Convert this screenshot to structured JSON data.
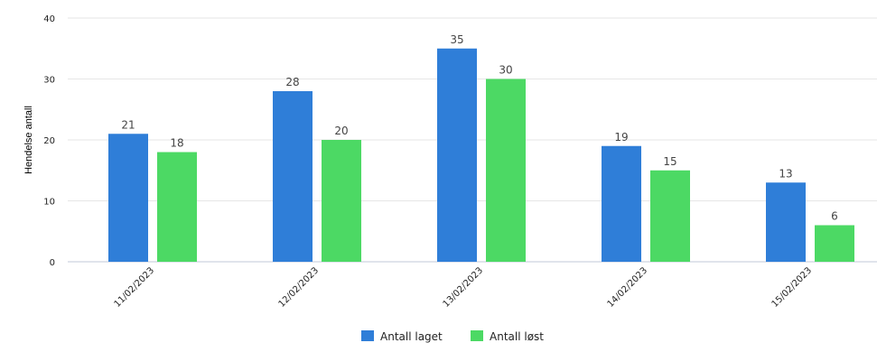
{
  "chart_data": {
    "type": "bar",
    "title": "",
    "xlabel": "",
    "ylabel": "Hendelse antall",
    "ylim": [
      0,
      40
    ],
    "yticks": [
      0,
      10,
      20,
      30,
      40
    ],
    "grid": true,
    "legend_position": "bottom",
    "show_data_labels": true,
    "categories": [
      "11/02/2023",
      "12/02/2023",
      "13/02/2023",
      "14/02/2023",
      "15/02/2023"
    ],
    "series": [
      {
        "name": "Antall laget",
        "color": "#2f7ed8",
        "values": [
          21,
          28,
          35,
          19,
          13
        ]
      },
      {
        "name": "Antall løst",
        "color": "#4cd964",
        "values": [
          18,
          20,
          30,
          15,
          6
        ]
      }
    ]
  }
}
